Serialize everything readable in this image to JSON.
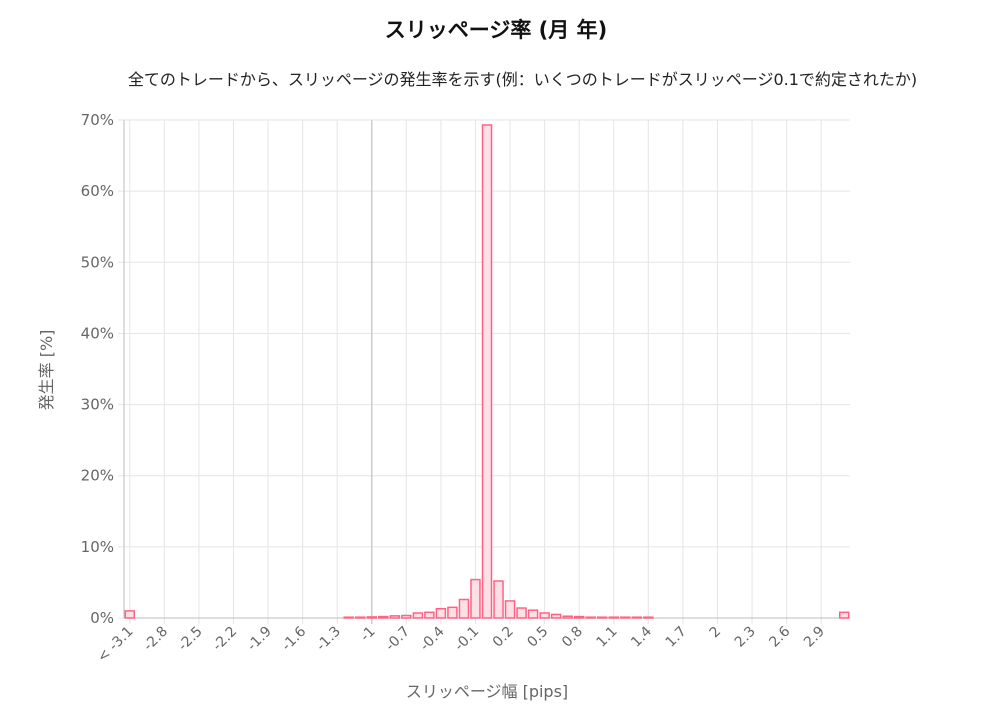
{
  "chart_data": {
    "type": "bar",
    "title": "スリッページ率 (月 年)",
    "subtitle": "全てのトレードから、スリッページの発生率を示す(例：いくつのトレードがスリッページ0.1で約定されたか)",
    "xlabel": "スリッページ幅 [pips]",
    "ylabel": "発生率 [%]",
    "ylim": [
      0,
      70
    ],
    "y_ticks": [
      "0%",
      "10%",
      "20%",
      "30%",
      "40%",
      "50%",
      "60%",
      "70%"
    ],
    "x_tick_labels": [
      "< -3.1",
      "-2.8",
      "-2.5",
      "-2.2",
      "-1.9",
      "-1.6",
      "-1.3",
      "-1",
      "-0.7",
      "-0.4",
      "-0.1",
      "0.2",
      "0.5",
      "0.8",
      "1.1",
      "1.4",
      "1.7",
      "2",
      "2.3",
      "2.6",
      "2.9"
    ],
    "categories": [
      "< -3.1",
      "-3",
      "-2.9",
      "-2.8",
      "-2.7",
      "-2.6",
      "-2.5",
      "-2.4",
      "-2.3",
      "-2.2",
      "-2.1",
      "-2",
      "-1.9",
      "-1.8",
      "-1.7",
      "-1.6",
      "-1.5",
      "-1.4",
      "-1.3",
      "-1.2",
      "-1.1",
      "-1",
      "-0.9",
      "-0.8",
      "-0.7",
      "-0.6",
      "-0.5",
      "-0.4",
      "-0.3",
      "-0.2",
      "-0.1",
      "0",
      "0.1",
      "0.2",
      "0.3",
      "0.4",
      "0.5",
      "0.6",
      "0.7",
      "0.8",
      "0.9",
      "1",
      "1.1",
      "1.2",
      "1.3",
      "1.4",
      "1.5",
      "1.6",
      "1.7",
      "1.8",
      "1.9",
      "2",
      "2.1",
      "2.2",
      "2.3",
      "2.4",
      "2.5",
      "2.6",
      "2.7",
      "2.8",
      "2.9",
      "3",
      "> 3.1"
    ],
    "values": [
      1.0,
      0,
      0,
      0,
      0,
      0,
      0,
      0,
      0,
      0,
      0,
      0,
      0,
      0,
      0,
      0,
      0,
      0,
      0,
      0.05,
      0.05,
      0.15,
      0.2,
      0.3,
      0.35,
      0.7,
      0.8,
      1.3,
      1.5,
      2.6,
      5.4,
      69.3,
      5.2,
      2.4,
      1.4,
      1.1,
      0.7,
      0.5,
      0.25,
      0.2,
      0.1,
      0.1,
      0.05,
      0.05,
      0.05,
      0.05,
      0,
      0,
      0,
      0,
      0,
      0,
      0,
      0,
      0,
      0,
      0,
      0,
      0,
      0,
      0,
      0,
      0.8
    ],
    "bar_fill": "#fde0e6",
    "bar_stroke": "#ff6384",
    "grid": true,
    "legend": "none"
  }
}
